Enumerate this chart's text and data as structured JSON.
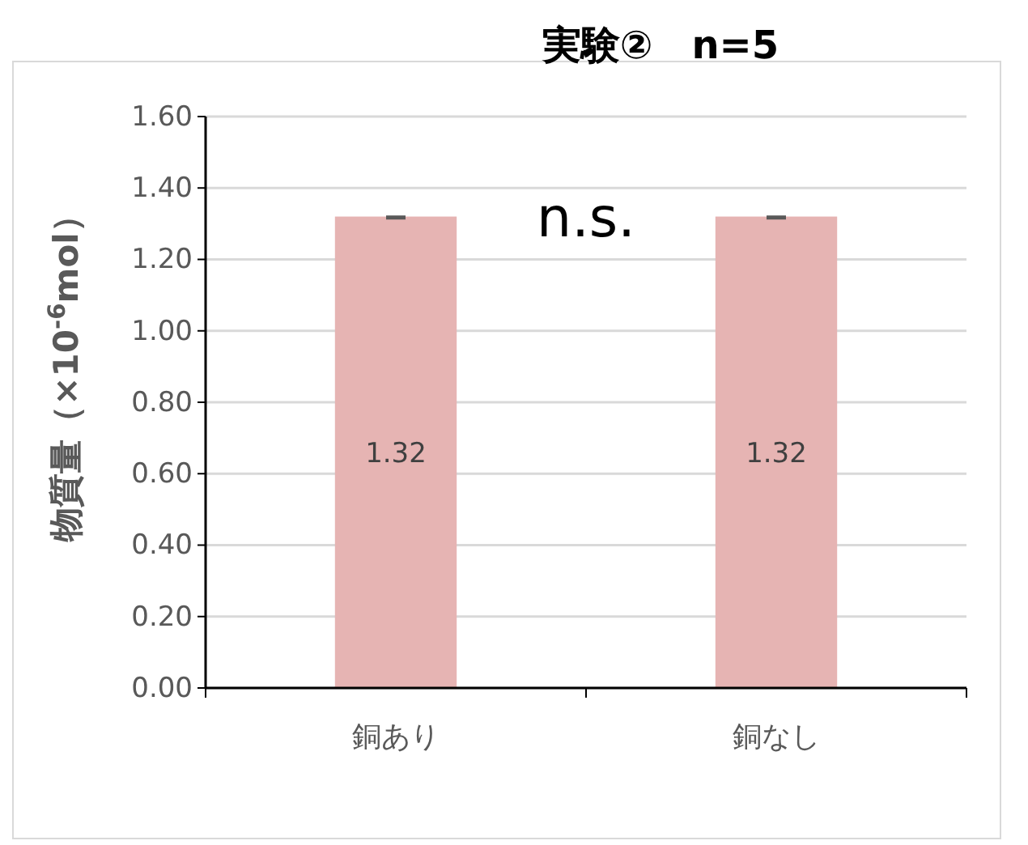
{
  "chart_data": {
    "type": "bar",
    "title": "実験②　n=5",
    "ylabel": "物質量（×10$^{-6}$mol）",
    "categories": [
      "銅あり",
      "銅なし"
    ],
    "values": [
      1.32,
      1.32
    ],
    "errors": [
      0.003,
      0.003
    ],
    "color": "#e6b4b3",
    "ylim": [
      0,
      1.6
    ],
    "yticks": [
      {
        "value": 0,
        "label": "0.00"
      },
      {
        "value": 0.2,
        "label": "0.20"
      },
      {
        "value": 0.4,
        "label": "0.40"
      },
      {
        "value": 0.6,
        "label": "0.60"
      },
      {
        "value": 0.8,
        "label": "0.80"
      },
      {
        "value": 1,
        "label": "1.00"
      },
      {
        "value": 1.2,
        "label": "1.20"
      },
      {
        "value": 1.4,
        "label": "1.40"
      },
      {
        "value": 1.6,
        "label": "1.60"
      }
    ],
    "grid": "y",
    "data_labels": true,
    "annotations": [
      "n.s."
    ]
  }
}
